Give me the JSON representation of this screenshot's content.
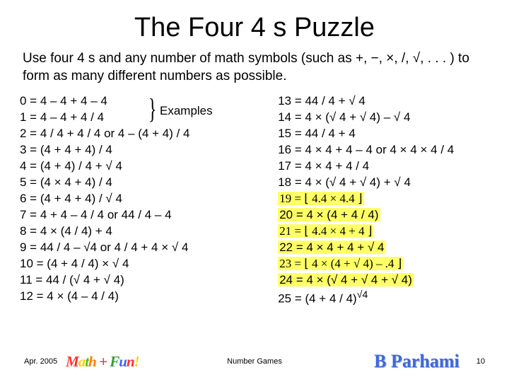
{
  "title": "The Four 4 s Puzzle",
  "intro": "Use four 4 s and any number of math symbols (such as +, −, ×, /, √, . . . ) to form as many different numbers as possible.",
  "examples_label": "Examples",
  "left": [
    "  0 = 4 – 4 + 4 – 4",
    "  1 = 4 – 4 + 4 / 4",
    "  2 = 4 / 4 + 4 / 4    or    4 – (4 + 4) / 4",
    "  3 = (4 + 4 + 4) / 4",
    "  4 = (4 + 4) / 4 + √ 4",
    "  5 = (4 × 4 + 4) / 4",
    "  6 = (4 + 4 + 4) / √ 4",
    "  7 = 4 + 4 – 4 / 4    or    44 / 4 – 4",
    "  8 = 4 × (4 / 4) + 4",
    "  9 = 44 / 4 – √4    or    4 / 4 + 4 × √ 4",
    "10 = (4 + 4 / 4) × √ 4",
    "11 = 44 / (√ 4 + √ 4)",
    "12 = 4 × (4 – 4 / 4)"
  ],
  "right": [
    "13 = 44 / 4 + √ 4",
    "14 = 4 × (√ 4 + √ 4) – √ 4",
    "15 = 44 / 4 + 4",
    "16 = 4 × 4 + 4 – 4    or    4 × 4 × 4 / 4",
    "17 = 4 × 4 + 4 / 4",
    "18 = 4 × (√ 4 + √ 4) + √ 4"
  ],
  "right_hl": [
    "19 = ⌊ 4.4 × 4.4 ⌋",
    "20 = 4 × (4 + 4 / 4)",
    "21 = ⌊ 4.4 × 4 + 4 ⌋",
    "22 = 4 × 4 + 4 + √ 4",
    "23 = ⌊ 4 × (4 + √ 4) – .4 ⌋",
    "24 = 4 × (√ 4 + √ 4 + √ 4)"
  ],
  "right_last": "25 = (4 + 4 / 4)",
  "right_last_sup": "√4",
  "footer": {
    "date": "Apr. 2005",
    "center": "Number Games",
    "page": "10",
    "mathfun": [
      "M",
      "a",
      "t",
      "h",
      " + ",
      "F",
      "u",
      "n",
      "!"
    ],
    "author": "B Parhami"
  },
  "colors": {
    "background": "#ffffff",
    "text": "#000000",
    "highlight": "#ffff66",
    "author": "#4068d8"
  }
}
